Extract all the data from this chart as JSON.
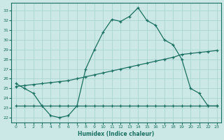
{
  "xlabel": "Humidex (Indice chaleur)",
  "background_color": "#cce8e6",
  "grid_color": "#aad4d0",
  "line_color": "#1a7060",
  "xlim": [
    -0.5,
    23.5
  ],
  "ylim": [
    21.5,
    33.8
  ],
  "xticks": [
    0,
    1,
    2,
    3,
    4,
    5,
    6,
    7,
    8,
    9,
    10,
    11,
    12,
    13,
    14,
    15,
    16,
    17,
    18,
    19,
    20,
    21,
    22,
    23
  ],
  "yticks": [
    22,
    23,
    24,
    25,
    26,
    27,
    28,
    29,
    30,
    31,
    32,
    33
  ],
  "line1_x": [
    0,
    1,
    2,
    3,
    4,
    5,
    6,
    7,
    8,
    9,
    10,
    11,
    12,
    13,
    14,
    15,
    16,
    17,
    18,
    19,
    20,
    21,
    22,
    23
  ],
  "line1_y": [
    25.5,
    25.0,
    24.5,
    23.2,
    22.2,
    22.0,
    22.2,
    23.2,
    27.0,
    29.0,
    30.8,
    32.1,
    31.9,
    32.4,
    33.3,
    32.0,
    31.5,
    30.0,
    29.5,
    28.0,
    25.0,
    24.5,
    23.2,
    23.2
  ],
  "line2_x": [
    0,
    1,
    2,
    3,
    4,
    5,
    6,
    7,
    8,
    9,
    10,
    11,
    12,
    13,
    14,
    15,
    16,
    17,
    18,
    19,
    20,
    21,
    22,
    23
  ],
  "line2_y": [
    25.2,
    25.3,
    25.4,
    25.5,
    25.6,
    25.7,
    25.8,
    26.0,
    26.2,
    26.4,
    26.6,
    26.8,
    27.0,
    27.2,
    27.4,
    27.6,
    27.8,
    28.0,
    28.2,
    28.5,
    28.6,
    28.7,
    28.8,
    28.9
  ],
  "line3_x": [
    0,
    1,
    2,
    3,
    4,
    5,
    6,
    7,
    8,
    9,
    10,
    11,
    12,
    13,
    14,
    15,
    16,
    17,
    18,
    19,
    20,
    21,
    22,
    23
  ],
  "line3_y": [
    23.2,
    23.2,
    23.2,
    23.2,
    23.2,
    23.2,
    23.2,
    23.2,
    23.2,
    23.2,
    23.2,
    23.2,
    23.2,
    23.2,
    23.2,
    23.2,
    23.2,
    23.2,
    23.2,
    23.2,
    23.2,
    23.2,
    23.2,
    23.2
  ]
}
